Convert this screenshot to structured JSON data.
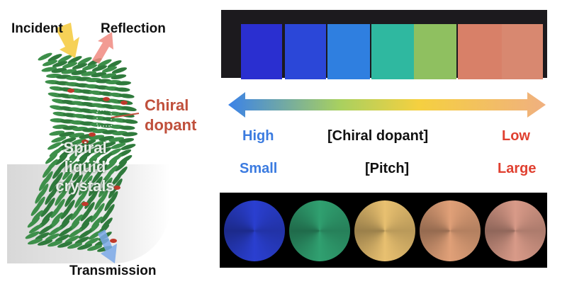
{
  "left": {
    "incident": "Incident",
    "reflection": "Reflection",
    "chiral_dopant_line1": "Chiral",
    "chiral_dopant_line2": "dopant",
    "spiral_line1": "Spiral",
    "spiral_line2": "liquid",
    "spiral_line3": "crystals",
    "transmission": "Transmission",
    "colors": {
      "lc_green": "#2f7a3c",
      "dopant_red": "#c0392b",
      "chiral_label": "#c0503c",
      "incident_arrow": "#f5c93a",
      "reflection_arrow": "#f08a80",
      "transmission_arrow": "#7aa8e8"
    }
  },
  "right": {
    "square_colors": [
      "#2a2fd0",
      "#2b47d8",
      "#2f7fe0",
      "#2fb8a0",
      "#8fc060",
      "#d88068",
      "#d88870"
    ],
    "gradient_colors": [
      "#3b82e8",
      "#a8d060",
      "#f5d040",
      "#f0b080"
    ],
    "high": "High",
    "chiral_dopant": "[Chiral dopant]",
    "low": "Low",
    "small": "Small",
    "pitch": "[Pitch]",
    "large": "Large",
    "blue_label_color": "#3b7be0",
    "red_label_color": "#e04030",
    "circle_colors": [
      "#2a3fd0",
      "#30a070",
      "#e8c070",
      "#e0a078",
      "#d89a88"
    ]
  }
}
